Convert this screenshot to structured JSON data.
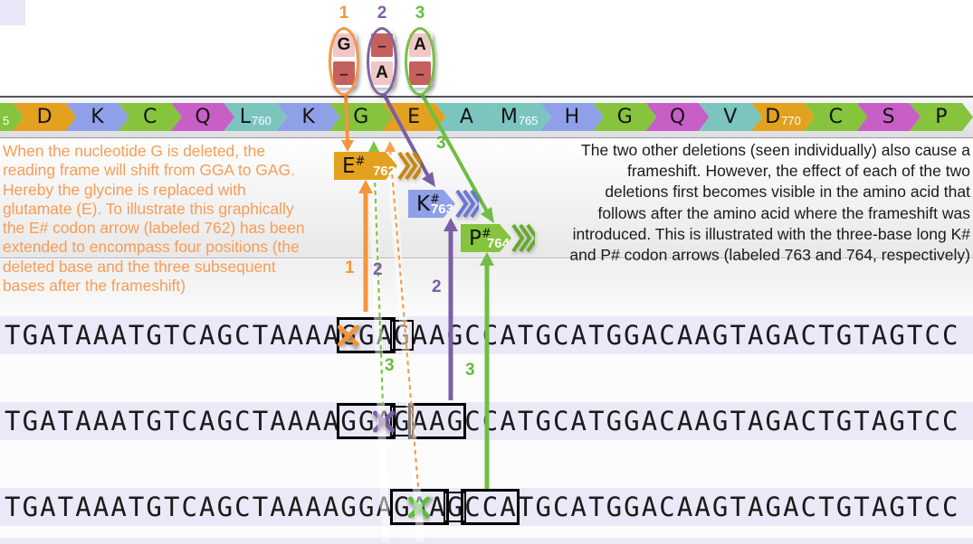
{
  "deletion_groups": [
    {
      "num": "1",
      "color": "orange",
      "cells": [
        {
          "text": "G",
          "variant": "pink"
        },
        {
          "text": "–",
          "variant": "red"
        }
      ]
    },
    {
      "num": "2",
      "color": "purple",
      "cells": [
        {
          "text": "–",
          "variant": "red"
        },
        {
          "text": "A",
          "variant": "pink"
        }
      ]
    },
    {
      "num": "3",
      "color": "green",
      "cells": [
        {
          "text": "A",
          "variant": "pink"
        },
        {
          "text": "–",
          "variant": "red"
        }
      ]
    }
  ],
  "amino_row": [
    {
      "label": "5",
      "color": "green",
      "partial": true
    },
    {
      "label": "D",
      "color": "orange"
    },
    {
      "label": "K",
      "color": "blue"
    },
    {
      "label": "C",
      "color": "green"
    },
    {
      "label": "Q",
      "color": "magenta"
    },
    {
      "label": "L",
      "num": "760",
      "color": "teal"
    },
    {
      "label": "K",
      "color": "blue"
    },
    {
      "label": "G",
      "color": "green"
    },
    {
      "label": "E",
      "color": "orange"
    },
    {
      "label": "A",
      "color": "teal"
    },
    {
      "label": "M",
      "num": "765",
      "color": "teal"
    },
    {
      "label": "H",
      "color": "blue"
    },
    {
      "label": "G",
      "color": "green"
    },
    {
      "label": "Q",
      "color": "magenta"
    },
    {
      "label": "V",
      "color": "teal"
    },
    {
      "label": "D",
      "num": "770",
      "color": "orange"
    },
    {
      "label": "C",
      "color": "green"
    },
    {
      "label": "S",
      "color": "magenta"
    },
    {
      "label": "P",
      "color": "green"
    }
  ],
  "codon_arrows": [
    {
      "letter": "E",
      "hash": "#",
      "num": "762",
      "color": "orange"
    },
    {
      "letter": "K",
      "hash": "#",
      "num": "763",
      "color": "blue"
    },
    {
      "letter": "P",
      "hash": "#",
      "num": "764",
      "color": "green"
    }
  ],
  "left_note": {
    "color": "#F89C55",
    "lines": [
      "When the nucleotide G is deleted, the",
      "reading frame will shift from GGA to GAG.",
      "Hereby the glycine is replaced with",
      "glutamate (E). To illustrate this graphically",
      "the E# codon arrow (labeled 762) has been",
      "extended to encompass four positions (the",
      "deleted base and the three subsequent",
      "bases after the frameshift)"
    ]
  },
  "right_note": {
    "color": "#1A1A1A",
    "lines": [
      "The two other deletions (seen individually) also cause a",
      "frameshift. However, the effect of each of the two",
      "deletions first becomes visible in the amino acid that",
      "follows after the amino acid where the frameshift was",
      "introduced. This is illustrated with the three-base long K#",
      "and P# codon arrows (labeled 763 and 764, respectively)"
    ]
  },
  "sequence_rows": [
    {
      "sequence": "TGATAAATGTCAGCTAAAAGGAGAAGCCATGCATGGACAAGTAGACTGTAGTCC",
      "boxes": [
        {
          "start": 19,
          "end": 21,
          "color": "orange",
          "weight": "thick"
        },
        {
          "start": 22,
          "end": 22,
          "color": "orange",
          "weight": "thin"
        }
      ],
      "x_mark": {
        "index": 19,
        "color": "orange"
      }
    },
    {
      "sequence": "TGATAAATGTCAGCTAAAAGGAGAAGCCATGCATGGACAAGTAGACTGTAGTCC",
      "boxes": [
        {
          "start": 19,
          "end": 21,
          "color": "green",
          "weight": "thick"
        },
        {
          "start": 22,
          "end": 22,
          "color": "green",
          "weight": "thin"
        },
        {
          "start": 23,
          "end": 25,
          "color": "purple",
          "weight": "thick"
        }
      ],
      "x_mark": {
        "index": 21,
        "color": "purple"
      }
    },
    {
      "sequence": "TGATAAATGTCAGCTAAAAGGAGAAGCCATGCATGGACAAGTAGACTGTAGTCC",
      "boxes": [
        {
          "start": 22,
          "end": 24,
          "color": "orange",
          "weight": "thick"
        },
        {
          "start": 25,
          "end": 25,
          "color": "orange",
          "weight": "thin"
        },
        {
          "start": 26,
          "end": 28,
          "color": "green",
          "weight": "thick"
        }
      ],
      "x_mark": {
        "index": 23,
        "color": "green"
      }
    }
  ],
  "connector_labels": [
    {
      "text": "1",
      "color": "orange"
    },
    {
      "text": "2",
      "color": "purple"
    },
    {
      "text": "2",
      "color": "purple"
    },
    {
      "text": "3",
      "color": "green"
    },
    {
      "text": "3",
      "color": "green"
    },
    {
      "text": "3",
      "color": "green"
    }
  ],
  "colors": {
    "orange_arrow": "#E2A11E",
    "blue_arrow": "#8FA0E8",
    "green_arrow": "#85C43C",
    "magenta_arrow": "#C75FC7",
    "teal_arrow": "#7CC5BF",
    "orange_accent": "#F5953B",
    "purple_accent": "#7B5EA7",
    "green_accent": "#5CBE3C",
    "red_cell": "#C4605E",
    "pink_cell": "#F0C7C6",
    "sequence_band": "#E9E9F7",
    "orange_text": "#F89C55"
  }
}
